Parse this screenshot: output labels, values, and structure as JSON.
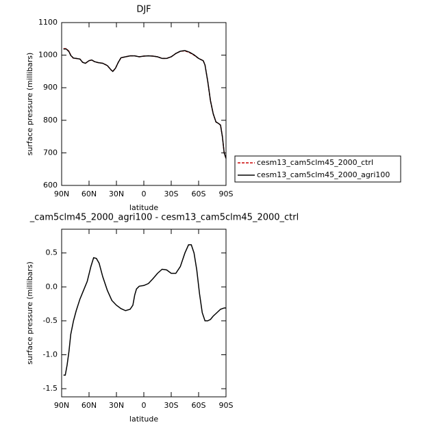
{
  "chart_data": [
    {
      "type": "line",
      "title": "DJF",
      "xlabel": "latitude",
      "ylabel": "surface pressure (millibars)",
      "x": [
        88,
        85,
        82,
        80,
        77,
        74,
        70,
        67,
        64,
        60,
        57,
        54,
        50,
        45,
        40,
        36,
        34,
        31,
        28,
        25,
        20,
        15,
        10,
        5,
        0,
        -5,
        -10,
        -15,
        -20,
        -25,
        -30,
        -35,
        -40,
        -45,
        -50,
        -55,
        -60,
        -65,
        -67,
        -70,
        -73,
        -76,
        -79,
        -82,
        -84,
        -86,
        -88,
        -90
      ],
      "series": [
        {
          "name": "cesm13_cam5clm45_2000_ctrl",
          "color": "#cc0000",
          "dash": true,
          "values": [
            1020,
            1020,
            1012,
            1000,
            990,
            990,
            988,
            978,
            975,
            983,
            985,
            980,
            977,
            975,
            968,
            955,
            950,
            960,
            978,
            992,
            995,
            998,
            998,
            995,
            997,
            998,
            997,
            995,
            990,
            990,
            995,
            1005,
            1012,
            1013,
            1008,
            1000,
            990,
            983,
            970,
            920,
            860,
            820,
            795,
            790,
            785,
            750,
            700,
            683
          ]
        },
        {
          "name": "cesm13_cam5clm45_2000_agri100",
          "color": "#000000",
          "dash": false,
          "values": [
            1019,
            1019,
            1011,
            999,
            991,
            990,
            988,
            978,
            975,
            983,
            985,
            980,
            977,
            975,
            968,
            955,
            950,
            960,
            978,
            992,
            995,
            998,
            998,
            995,
            997,
            998,
            997,
            995,
            990,
            990,
            995,
            1005,
            1012,
            1014,
            1009,
            1001,
            990,
            983,
            970,
            920,
            860,
            820,
            795,
            790,
            785,
            750,
            700,
            683
          ]
        }
      ],
      "xlim": [
        90,
        -90
      ],
      "xticks": [
        {
          "value": 90,
          "label": "90N"
        },
        {
          "value": 60,
          "label": "60N"
        },
        {
          "value": 30,
          "label": "30N"
        },
        0,
        {
          "value": -30,
          "label": "30S"
        },
        {
          "value": -60,
          "label": "60S"
        },
        {
          "value": -90,
          "label": "90S"
        }
      ],
      "ylim": [
        600,
        1100
      ],
      "yticks": [
        600,
        700,
        800,
        900,
        1000,
        1100
      ]
    },
    {
      "type": "line",
      "title": "_cam5clm45_2000_agri100 - cesm13_cam5clm45_2000_ctrl",
      "xlabel": "latitude",
      "ylabel": "surface pressure (millibars)",
      "x": [
        88,
        86,
        84,
        82,
        80,
        77,
        74,
        70,
        66,
        62,
        58,
        55,
        52,
        49,
        45,
        40,
        35,
        30,
        25,
        20,
        15,
        12,
        10,
        8,
        5,
        0,
        -5,
        -10,
        -15,
        -20,
        -25,
        -30,
        -35,
        -40,
        -45,
        -49,
        -52,
        -55,
        -58,
        -61,
        -64,
        -67,
        -70,
        -73,
        -76,
        -80,
        -84,
        -88,
        -90
      ],
      "values": [
        -1.3,
        -1.3,
        -1.15,
        -0.95,
        -0.7,
        -0.5,
        -0.35,
        -0.18,
        -0.05,
        0.08,
        0.3,
        0.43,
        0.42,
        0.35,
        0.15,
        -0.05,
        -0.2,
        -0.27,
        -0.32,
        -0.35,
        -0.33,
        -0.27,
        -0.12,
        -0.03,
        0.01,
        0.02,
        0.05,
        0.12,
        0.2,
        0.26,
        0.25,
        0.2,
        0.2,
        0.3,
        0.5,
        0.62,
        0.62,
        0.5,
        0.25,
        -0.1,
        -0.38,
        -0.5,
        -0.5,
        -0.48,
        -0.43,
        -0.38,
        -0.33,
        -0.31,
        -0.31
      ],
      "color": "#000000",
      "xlim": [
        90,
        -90
      ],
      "xticks": [
        {
          "value": 90,
          "label": "90N"
        },
        {
          "value": 60,
          "label": "60N"
        },
        {
          "value": 30,
          "label": "30N"
        },
        0,
        {
          "value": -30,
          "label": "30S"
        },
        {
          "value": -60,
          "label": "60S"
        },
        {
          "value": -90,
          "label": "90S"
        }
      ],
      "ylim": [
        -1.62,
        0.85
      ],
      "yticks": [
        -1.5,
        {
          "value": -1,
          "label": "-1.0"
        },
        -0.5,
        {
          "value": 0,
          "label": "0.0"
        },
        0.5
      ]
    }
  ]
}
